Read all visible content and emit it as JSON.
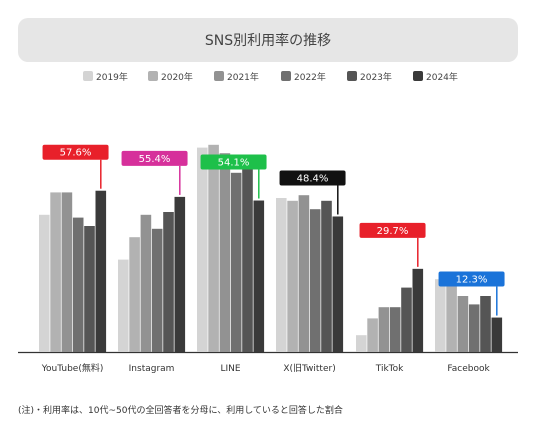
{
  "chart_data": {
    "type": "bar",
    "title": "SNS別利用率の推移",
    "xlabel": "",
    "ylabel": "",
    "ylim": [
      0,
      90
    ],
    "grid": false,
    "legend_position": "top",
    "categories": [
      "YouTube(無料)",
      "Instagram",
      "LINE",
      "X(旧Twitter)",
      "TikTok",
      "Facebook"
    ],
    "series": [
      {
        "name": "2019年",
        "color": "#d4d4d4",
        "values": [
          49,
          33,
          73,
          55,
          6,
          26
        ]
      },
      {
        "name": "2020年",
        "color": "#b2b2b2",
        "values": [
          57,
          41,
          74,
          54,
          12,
          27
        ]
      },
      {
        "name": "2021年",
        "color": "#929292",
        "values": [
          57,
          49,
          71,
          56,
          16,
          20
        ]
      },
      {
        "name": "2022年",
        "color": "#707070",
        "values": [
          48,
          44,
          64,
          51,
          16,
          17
        ]
      },
      {
        "name": "2023年",
        "color": "#555555",
        "values": [
          45,
          50,
          67,
          54,
          23,
          20
        ]
      },
      {
        "name": "2024年",
        "color": "#3a3a3a",
        "values": [
          57.6,
          55.4,
          54.1,
          48.4,
          29.7,
          12.3
        ]
      }
    ],
    "callouts": [
      {
        "label": "57.6%",
        "color": "#e8202a"
      },
      {
        "label": "55.4%",
        "color": "#d6309b"
      },
      {
        "label": "54.1%",
        "color": "#1ec04a"
      },
      {
        "label": "48.4%",
        "color": "#111111"
      },
      {
        "label": "29.7%",
        "color": "#e8202a"
      },
      {
        "label": "12.3%",
        "color": "#1a73d9"
      }
    ]
  },
  "note": "(注)・利用率は、10代~50代の全回答者を分母に、利用していると回答した割合"
}
